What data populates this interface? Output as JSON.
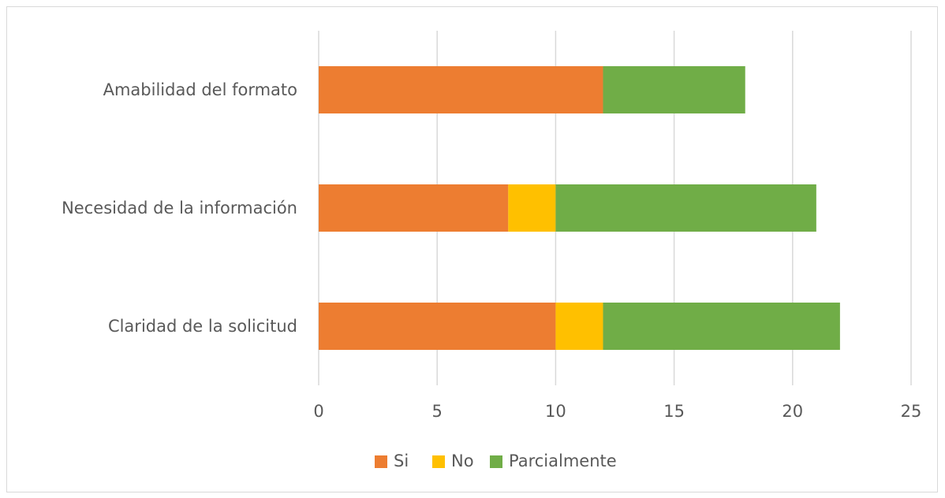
{
  "chart_data": {
    "type": "bar",
    "orientation": "horizontal",
    "stacked": true,
    "categories": [
      "Claridad de la solicitud",
      "Necesidad de la información",
      "Amabilidad del formato"
    ],
    "series": [
      {
        "name": "Si",
        "color": "#ed7d31",
        "values": [
          10,
          8,
          12
        ]
      },
      {
        "name": "No",
        "color": "#ffc000",
        "values": [
          2,
          2,
          0
        ]
      },
      {
        "name": "Parcialmente",
        "color": "#70ad47",
        "values": [
          10,
          11,
          6
        ]
      }
    ],
    "xlim": [
      0,
      25
    ],
    "xticks": [
      "0",
      "5",
      "10",
      "15",
      "20",
      "25"
    ],
    "grid": "vertical",
    "legend_position": "bottom",
    "title": "",
    "xlabel": "",
    "ylabel": ""
  }
}
